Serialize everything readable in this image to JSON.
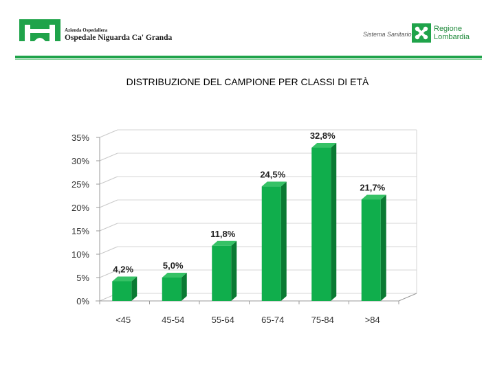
{
  "header": {
    "hospital_small": "Azienda Ospedaliera",
    "hospital_name": "Ospedale Niguarda Ca' Granda",
    "sistema": "Sistema Sanitario",
    "region_line1": "Regione",
    "region_line2": "Lombardia"
  },
  "slide": {
    "title": "DISTRIBUZIONE DEL CAMPIONE PER CLASSI DI ETÀ"
  },
  "colors": {
    "brand_green": "#1fa34a",
    "bar_front": "#10ae4c",
    "bar_side": "#0a7a33",
    "bar_top": "#36c266"
  },
  "chart_data": {
    "type": "bar",
    "title": "",
    "xlabel": "",
    "ylabel": "",
    "categories": [
      "<45",
      "45-54",
      "55-64",
      "65-74",
      "75-84",
      ">84"
    ],
    "values": [
      4.2,
      5.0,
      11.8,
      24.5,
      32.8,
      21.7
    ],
    "data_labels": [
      "4,2%",
      "5,0%",
      "11,8%",
      "24,5%",
      "32,8%",
      "21,7%"
    ],
    "yticks": [
      0,
      5,
      10,
      15,
      20,
      25,
      30,
      35
    ],
    "ytick_labels": [
      "0%",
      "5%",
      "10%",
      "15%",
      "20%",
      "25%",
      "30%",
      "35%"
    ],
    "ylim": [
      0,
      35
    ],
    "grid": true,
    "legend": false
  }
}
